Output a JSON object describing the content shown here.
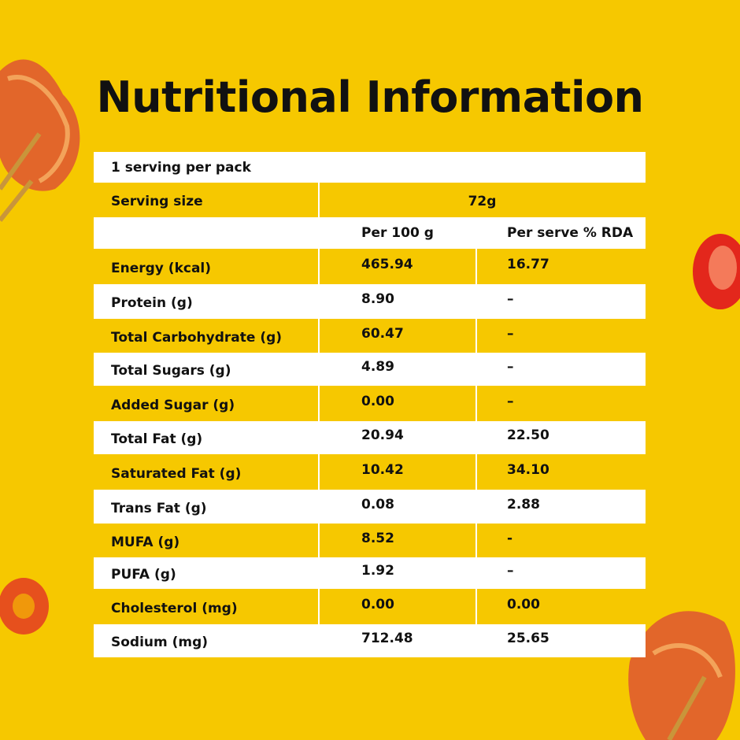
{
  "title": "Nutritional Information",
  "table": {
    "serving_note": "1 serving per pack",
    "serving_size": {
      "label": "Serving size",
      "value": "72g"
    },
    "header": [
      "Per 100 g",
      "Per serve % RDA"
    ],
    "rows": [
      [
        "Energy (kcal)",
        "465.94",
        "16.77"
      ],
      [
        "Protein (g)",
        "8.90",
        "–"
      ],
      [
        "Total Carbohydrate (g)",
        "60.47",
        "–"
      ],
      [
        "Total Sugars (g)",
        "4.89",
        "–"
      ],
      [
        "Added Sugar (g)",
        "0.00",
        "–"
      ],
      [
        "Total Fat (g)",
        "20.94",
        "22.50"
      ],
      [
        "Saturated Fat (g)",
        "10.42",
        "34.10"
      ],
      [
        "Trans Fat (g)",
        "0.08",
        "2.88"
      ],
      [
        "MUFA (g)",
        "8.52",
        "-"
      ],
      [
        "PUFA (g)",
        "1.92",
        "–"
      ],
      [
        "Cholesterol (mg)",
        "0.00",
        "0.00"
      ],
      [
        "Sodium (mg)",
        "712.48",
        "25.65"
      ]
    ]
  }
}
